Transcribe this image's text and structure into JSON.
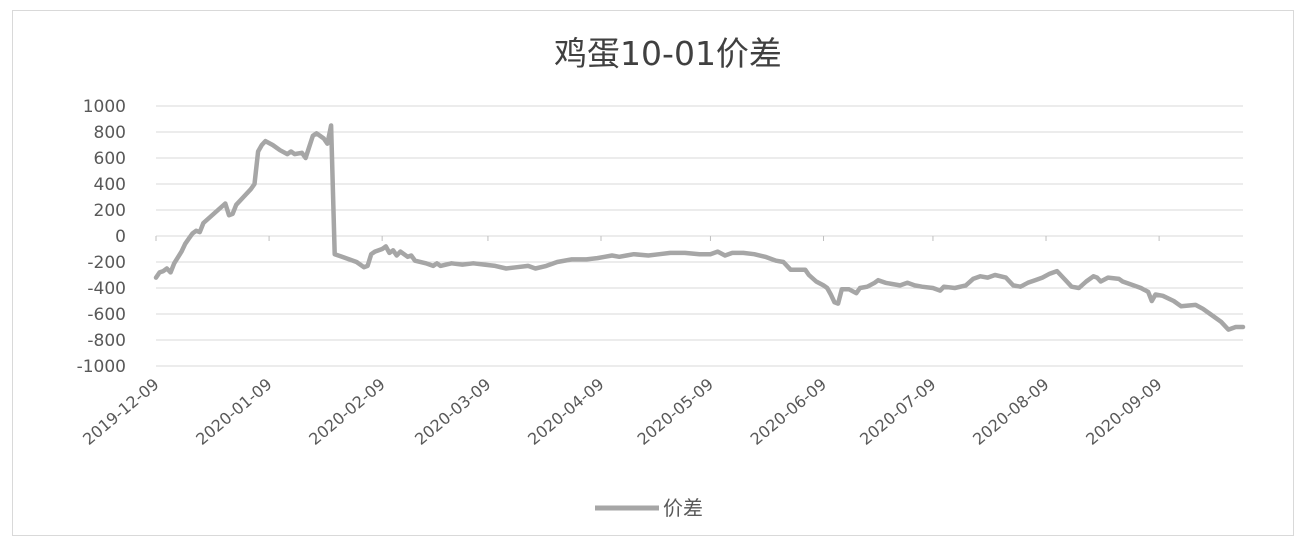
{
  "chart_data": {
    "type": "line",
    "title": "鸡蛋10-01价差",
    "xlabel": "",
    "ylabel": "",
    "ylim": [
      -1000,
      1000
    ],
    "yticks": [
      "1000",
      "800",
      "600",
      "400",
      "200",
      "0",
      "-200",
      "-400",
      "-600",
      "-800",
      "-1000"
    ],
    "xticks": [
      "2019-12-09",
      "2020-01-09",
      "2020-02-09",
      "2020-03-09",
      "2020-04-09",
      "2020-05-09",
      "2020-06-09",
      "2020-07-09",
      "2020-08-09",
      "2020-09-09"
    ],
    "x_range": [
      "2019-12-09",
      "2020-10-02"
    ],
    "grid": true,
    "legend": "bottom",
    "line_color": "#a6a6a6",
    "series": [
      {
        "name": "价差",
        "points": [
          [
            "2019-12-09",
            -320
          ],
          [
            "2019-12-10",
            -280
          ],
          [
            "2019-12-11",
            -270
          ],
          [
            "2019-12-12",
            -250
          ],
          [
            "2019-12-13",
            -280
          ],
          [
            "2019-12-14",
            -210
          ],
          [
            "2019-12-16",
            -120
          ],
          [
            "2019-12-17",
            -60
          ],
          [
            "2019-12-18",
            -20
          ],
          [
            "2019-12-19",
            20
          ],
          [
            "2019-12-20",
            40
          ],
          [
            "2019-12-21",
            30
          ],
          [
            "2019-12-22",
            100
          ],
          [
            "2019-12-24",
            150
          ],
          [
            "2019-12-26",
            200
          ],
          [
            "2019-12-28",
            250
          ],
          [
            "2019-12-29",
            160
          ],
          [
            "2019-12-30",
            170
          ],
          [
            "2019-12-31",
            240
          ],
          [
            "2020-01-02",
            300
          ],
          [
            "2020-01-04",
            360
          ],
          [
            "2020-01-05",
            400
          ],
          [
            "2020-01-06",
            650
          ],
          [
            "2020-01-07",
            700
          ],
          [
            "2020-01-08",
            730
          ],
          [
            "2020-01-10",
            700
          ],
          [
            "2020-01-12",
            660
          ],
          [
            "2020-01-14",
            630
          ],
          [
            "2020-01-15",
            650
          ],
          [
            "2020-01-16",
            630
          ],
          [
            "2020-01-18",
            640
          ],
          [
            "2020-01-19",
            600
          ],
          [
            "2020-01-21",
            770
          ],
          [
            "2020-01-22",
            790
          ],
          [
            "2020-01-24",
            750
          ],
          [
            "2020-01-25",
            710
          ],
          [
            "2020-01-26",
            850
          ],
          [
            "2020-01-27",
            -140
          ],
          [
            "2020-01-29",
            -160
          ],
          [
            "2020-01-31",
            -180
          ],
          [
            "2020-02-02",
            -200
          ],
          [
            "2020-02-04",
            -240
          ],
          [
            "2020-02-05",
            -230
          ],
          [
            "2020-02-06",
            -140
          ],
          [
            "2020-02-07",
            -120
          ],
          [
            "2020-02-09",
            -100
          ],
          [
            "2020-02-10",
            -80
          ],
          [
            "2020-02-11",
            -130
          ],
          [
            "2020-02-12",
            -110
          ],
          [
            "2020-02-13",
            -150
          ],
          [
            "2020-02-14",
            -120
          ],
          [
            "2020-02-16",
            -160
          ],
          [
            "2020-02-17",
            -150
          ],
          [
            "2020-02-18",
            -190
          ],
          [
            "2020-02-21",
            -210
          ],
          [
            "2020-02-23",
            -230
          ],
          [
            "2020-02-24",
            -210
          ],
          [
            "2020-02-25",
            -230
          ],
          [
            "2020-02-28",
            -210
          ],
          [
            "2020-03-02",
            -220
          ],
          [
            "2020-03-05",
            -210
          ],
          [
            "2020-03-08",
            -220
          ],
          [
            "2020-03-11",
            -230
          ],
          [
            "2020-03-14",
            -250
          ],
          [
            "2020-03-17",
            -240
          ],
          [
            "2020-03-20",
            -230
          ],
          [
            "2020-03-22",
            -250
          ],
          [
            "2020-03-25",
            -230
          ],
          [
            "2020-03-28",
            -200
          ],
          [
            "2020-04-01",
            -180
          ],
          [
            "2020-04-05",
            -180
          ],
          [
            "2020-04-08",
            -170
          ],
          [
            "2020-04-10",
            -160
          ],
          [
            "2020-04-12",
            -150
          ],
          [
            "2020-04-14",
            -160
          ],
          [
            "2020-04-16",
            -150
          ],
          [
            "2020-04-18",
            -140
          ],
          [
            "2020-04-22",
            -150
          ],
          [
            "2020-04-25",
            -140
          ],
          [
            "2020-04-28",
            -130
          ],
          [
            "2020-05-02",
            -130
          ],
          [
            "2020-05-06",
            -140
          ],
          [
            "2020-05-09",
            -140
          ],
          [
            "2020-05-11",
            -120
          ],
          [
            "2020-05-13",
            -150
          ],
          [
            "2020-05-15",
            -130
          ],
          [
            "2020-05-18",
            -130
          ],
          [
            "2020-05-21",
            -140
          ],
          [
            "2020-05-24",
            -160
          ],
          [
            "2020-05-27",
            -190
          ],
          [
            "2020-05-29",
            -200
          ],
          [
            "2020-05-31",
            -260
          ],
          [
            "2020-06-04",
            -260
          ],
          [
            "2020-06-05",
            -300
          ],
          [
            "2020-06-07",
            -350
          ],
          [
            "2020-06-09",
            -380
          ],
          [
            "2020-06-10",
            -400
          ],
          [
            "2020-06-11",
            -450
          ],
          [
            "2020-06-12",
            -510
          ],
          [
            "2020-06-13",
            -520
          ],
          [
            "2020-06-14",
            -410
          ],
          [
            "2020-06-16",
            -410
          ],
          [
            "2020-06-18",
            -440
          ],
          [
            "2020-06-19",
            -400
          ],
          [
            "2020-06-21",
            -390
          ],
          [
            "2020-06-23",
            -360
          ],
          [
            "2020-06-24",
            -340
          ],
          [
            "2020-06-26",
            -360
          ],
          [
            "2020-06-28",
            -370
          ],
          [
            "2020-06-30",
            -380
          ],
          [
            "2020-07-02",
            -360
          ],
          [
            "2020-07-04",
            -380
          ],
          [
            "2020-07-06",
            -390
          ],
          [
            "2020-07-09",
            -400
          ],
          [
            "2020-07-11",
            -420
          ],
          [
            "2020-07-12",
            -390
          ],
          [
            "2020-07-15",
            -400
          ],
          [
            "2020-07-18",
            -380
          ],
          [
            "2020-07-20",
            -330
          ],
          [
            "2020-07-22",
            -310
          ],
          [
            "2020-07-24",
            -320
          ],
          [
            "2020-07-26",
            -300
          ],
          [
            "2020-07-29",
            -320
          ],
          [
            "2020-07-31",
            -380
          ],
          [
            "2020-08-02",
            -390
          ],
          [
            "2020-08-04",
            -360
          ],
          [
            "2020-08-06",
            -340
          ],
          [
            "2020-08-08",
            -320
          ],
          [
            "2020-08-10",
            -290
          ],
          [
            "2020-08-12",
            -270
          ],
          [
            "2020-08-14",
            -330
          ],
          [
            "2020-08-16",
            -390
          ],
          [
            "2020-08-18",
            -400
          ],
          [
            "2020-08-20",
            -350
          ],
          [
            "2020-08-22",
            -310
          ],
          [
            "2020-08-23",
            -320
          ],
          [
            "2020-08-24",
            -350
          ],
          [
            "2020-08-26",
            -320
          ],
          [
            "2020-08-29",
            -330
          ],
          [
            "2020-08-30",
            -350
          ],
          [
            "2020-09-02",
            -380
          ],
          [
            "2020-09-04",
            -400
          ],
          [
            "2020-09-06",
            -430
          ],
          [
            "2020-09-07",
            -500
          ],
          [
            "2020-09-08",
            -450
          ],
          [
            "2020-09-10",
            -460
          ],
          [
            "2020-09-13",
            -500
          ],
          [
            "2020-09-15",
            -540
          ],
          [
            "2020-09-19",
            -530
          ],
          [
            "2020-09-21",
            -560
          ],
          [
            "2020-09-23",
            -600
          ],
          [
            "2020-09-26",
            -660
          ],
          [
            "2020-09-28",
            -720
          ],
          [
            "2020-09-30",
            -700
          ],
          [
            "2020-10-02",
            -700
          ]
        ]
      }
    ]
  }
}
